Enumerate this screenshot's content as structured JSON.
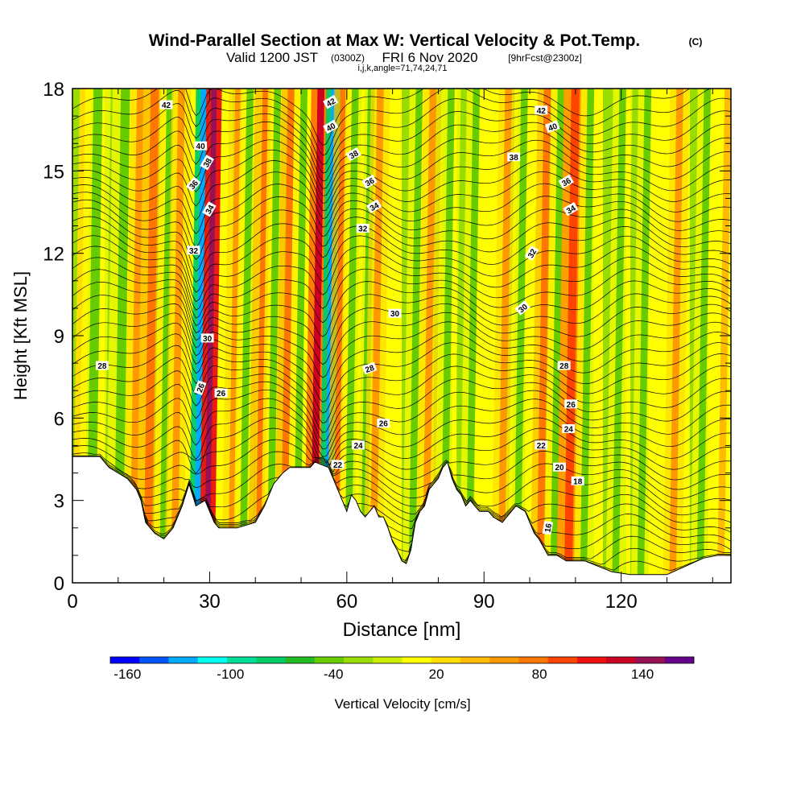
{
  "chart_data": {
    "type": "heatmap",
    "title": "Wind-Parallel Section at Max W: Vertical Velocity & Pot.Temp.",
    "title_mark": "(C)",
    "subtitle": {
      "valid": "Valid 1200 JST",
      "utc": "(0300Z)",
      "date": "FRI 6 Nov 2020",
      "forecast": "[9hrFcst@2300z]"
    },
    "indices": "i,j,k,angle=71,74,24,71",
    "xlabel": "Distance [nm]",
    "ylabel": "Height [Kft MSL]",
    "xlim": [
      0,
      144
    ],
    "ylim": [
      0,
      18
    ],
    "x_ticks": [
      "0",
      "30",
      "60",
      "90",
      "120"
    ],
    "y_ticks": [
      "0",
      "3",
      "6",
      "9",
      "12",
      "15",
      "18"
    ],
    "colorbar": {
      "label": "Vertical Velocity [cm/s]",
      "ticks": [
        "-160",
        "-100",
        "-40",
        "20",
        "80",
        "140"
      ],
      "colors": [
        "#0000ff",
        "#0055ff",
        "#00aaff",
        "#00ffee",
        "#00dd99",
        "#00cc66",
        "#22bb22",
        "#66cc00",
        "#99dd00",
        "#ccee00",
        "#ffff00",
        "#ffdd00",
        "#ffbb00",
        "#ff9900",
        "#ff7700",
        "#ff4400",
        "#ee1111",
        "#cc0022",
        "#991155",
        "#660088"
      ]
    },
    "velocity_bands": [
      {
        "x": 0,
        "w": 2.5,
        "v": 20
      },
      {
        "x": 3,
        "w": 2,
        "v": -40
      },
      {
        "x": 9,
        "w": 2,
        "v": -40
      },
      {
        "x": 12.5,
        "w": 1.5,
        "v": 60
      },
      {
        "x": 15.5,
        "w": 1.8,
        "v": 80
      },
      {
        "x": 19,
        "w": 1.5,
        "v": -40
      },
      {
        "x": 21.5,
        "w": 1.5,
        "v": 60
      },
      {
        "x": 26.5,
        "w": 1.2,
        "v": -120
      },
      {
        "x": 28.8,
        "w": 1.2,
        "v": 150
      },
      {
        "x": 34,
        "w": 1.5,
        "v": 60
      },
      {
        "x": 36.5,
        "w": 1.5,
        "v": -40
      },
      {
        "x": 40,
        "w": 1.8,
        "v": 80
      },
      {
        "x": 42.5,
        "w": 1.5,
        "v": -40
      },
      {
        "x": 45.5,
        "w": 1.5,
        "v": 80
      },
      {
        "x": 48.3,
        "w": 1.5,
        "v": -40
      },
      {
        "x": 52,
        "w": 1.5,
        "v": 120
      },
      {
        "x": 55,
        "w": 1.2,
        "v": -120
      },
      {
        "x": 57,
        "w": 1.5,
        "v": 80
      },
      {
        "x": 59.5,
        "w": 1.5,
        "v": -40
      },
      {
        "x": 63,
        "w": 1.5,
        "v": -40
      },
      {
        "x": 65,
        "w": 1.5,
        "v": 60
      },
      {
        "x": 73.5,
        "w": 1.5,
        "v": -40
      },
      {
        "x": 76.5,
        "w": 1.5,
        "v": 60
      },
      {
        "x": 80.5,
        "w": 1.5,
        "v": -40
      },
      {
        "x": 86,
        "w": 1.5,
        "v": -40
      },
      {
        "x": 93,
        "w": 1.5,
        "v": 60
      },
      {
        "x": 96.5,
        "w": 1.5,
        "v": -40
      },
      {
        "x": 101.5,
        "w": 1.5,
        "v": 80
      },
      {
        "x": 104.5,
        "w": 1.5,
        "v": -40
      },
      {
        "x": 107.5,
        "w": 1.8,
        "v": 100
      },
      {
        "x": 111,
        "w": 1.5,
        "v": -40
      },
      {
        "x": 118,
        "w": 1.5,
        "v": -40
      },
      {
        "x": 123.5,
        "w": 1.5,
        "v": -40
      },
      {
        "x": 130.5,
        "w": 1.5,
        "v": 60
      },
      {
        "x": 136.5,
        "w": 1.5,
        "v": -40
      },
      {
        "x": 141,
        "w": 1.5,
        "v": 40
      }
    ],
    "terrain": [
      [
        0,
        4.6
      ],
      [
        6,
        4.6
      ],
      [
        8,
        4.2
      ],
      [
        12,
        3.8
      ],
      [
        14,
        3.4
      ],
      [
        15,
        3.0
      ],
      [
        16,
        2.2
      ],
      [
        17,
        2.0
      ],
      [
        18,
        1.8
      ],
      [
        20,
        1.6
      ],
      [
        22,
        2.0
      ],
      [
        24,
        2.8
      ],
      [
        25.5,
        3.6
      ],
      [
        27,
        2.8
      ],
      [
        29,
        3.0
      ],
      [
        30,
        2.6
      ],
      [
        31,
        2.2
      ],
      [
        32,
        2.0
      ],
      [
        36,
        2.0
      ],
      [
        40,
        2.2
      ],
      [
        42,
        2.8
      ],
      [
        44,
        3.6
      ],
      [
        46,
        4.0
      ],
      [
        47.5,
        4.2
      ],
      [
        52,
        4.2
      ],
      [
        53,
        4.4
      ],
      [
        56,
        4.2
      ],
      [
        57,
        3.8
      ],
      [
        58,
        3.4
      ],
      [
        59,
        3.0
      ],
      [
        60,
        2.6
      ],
      [
        61,
        3.2
      ],
      [
        62,
        3.0
      ],
      [
        63,
        2.6
      ],
      [
        64,
        2.4
      ],
      [
        65,
        2.6
      ],
      [
        66,
        2.8
      ],
      [
        67,
        2.4
      ],
      [
        68,
        2.4
      ],
      [
        69,
        2.0
      ],
      [
        70,
        1.5
      ],
      [
        71,
        1.2
      ],
      [
        72,
        0.8
      ],
      [
        73,
        0.7
      ],
      [
        74,
        1.2
      ],
      [
        75,
        2.2
      ],
      [
        76,
        2.6
      ],
      [
        77,
        2.8
      ],
      [
        78,
        3.4
      ],
      [
        80,
        3.8
      ],
      [
        81,
        4.2
      ],
      [
        82,
        4.4
      ],
      [
        83,
        3.8
      ],
      [
        84,
        3.4
      ],
      [
        85,
        3.2
      ],
      [
        86,
        2.8
      ],
      [
        87,
        3.0
      ],
      [
        88,
        2.8
      ],
      [
        89,
        2.6
      ],
      [
        91,
        2.6
      ],
      [
        92,
        2.4
      ],
      [
        94,
        2.2
      ],
      [
        95,
        2.4
      ],
      [
        96,
        2.6
      ],
      [
        97,
        2.8
      ],
      [
        99,
        2.6
      ],
      [
        100,
        2.2
      ],
      [
        101,
        1.8
      ],
      [
        102,
        1.6
      ],
      [
        103,
        1.3
      ],
      [
        104,
        1.0
      ],
      [
        106,
        1.0
      ],
      [
        108,
        0.8
      ],
      [
        112,
        0.8
      ],
      [
        115,
        0.6
      ],
      [
        118,
        0.4
      ],
      [
        122,
        0.3
      ],
      [
        126,
        0.3
      ],
      [
        130,
        0.3
      ],
      [
        134,
        0.6
      ],
      [
        138,
        0.9
      ],
      [
        141,
        1.0
      ],
      [
        144,
        1.0
      ]
    ],
    "theta_labels": [
      {
        "text": "42",
        "x": 20.5,
        "y": 17.4,
        "rot": 0
      },
      {
        "text": "40",
        "x": 28,
        "y": 15.9,
        "rot": 0
      },
      {
        "text": "38",
        "x": 29.5,
        "y": 15.3,
        "rot": -60
      },
      {
        "text": "36",
        "x": 26.5,
        "y": 14.5,
        "rot": -50
      },
      {
        "text": "34",
        "x": 30,
        "y": 13.6,
        "rot": -60
      },
      {
        "text": "32",
        "x": 26.5,
        "y": 12.1,
        "rot": 0
      },
      {
        "text": "30",
        "x": 29.5,
        "y": 8.9,
        "rot": 0
      },
      {
        "text": "28",
        "x": 6.5,
        "y": 7.9,
        "rot": 0
      },
      {
        "text": "26",
        "x": 28,
        "y": 7.1,
        "rot": -70
      },
      {
        "text": "26",
        "x": 32.5,
        "y": 6.9,
        "rot": 0
      },
      {
        "text": "42",
        "x": 56.5,
        "y": 17.5,
        "rot": -30
      },
      {
        "text": "40",
        "x": 56.5,
        "y": 16.6,
        "rot": -30
      },
      {
        "text": "38",
        "x": 61.5,
        "y": 15.6,
        "rot": -30
      },
      {
        "text": "36",
        "x": 65,
        "y": 14.6,
        "rot": -30
      },
      {
        "text": "34",
        "x": 66,
        "y": 13.7,
        "rot": -30
      },
      {
        "text": "32",
        "x": 63.5,
        "y": 12.9,
        "rot": 0
      },
      {
        "text": "30",
        "x": 70.5,
        "y": 9.8,
        "rot": 0
      },
      {
        "text": "28",
        "x": 65,
        "y": 7.8,
        "rot": -20
      },
      {
        "text": "26",
        "x": 68,
        "y": 5.8,
        "rot": 0
      },
      {
        "text": "24",
        "x": 62.5,
        "y": 5.0,
        "rot": 0
      },
      {
        "text": "22",
        "x": 58,
        "y": 4.3,
        "rot": 0
      },
      {
        "text": "42",
        "x": 102.5,
        "y": 17.2,
        "rot": 0
      },
      {
        "text": "40",
        "x": 105,
        "y": 16.6,
        "rot": -20
      },
      {
        "text": "38",
        "x": 96.5,
        "y": 15.5,
        "rot": 0
      },
      {
        "text": "36",
        "x": 108,
        "y": 14.6,
        "rot": -30
      },
      {
        "text": "34",
        "x": 109,
        "y": 13.6,
        "rot": -30
      },
      {
        "text": "32",
        "x": 100.5,
        "y": 12.0,
        "rot": -60
      },
      {
        "text": "30",
        "x": 98.5,
        "y": 10.0,
        "rot": -40
      },
      {
        "text": "28",
        "x": 107.5,
        "y": 7.9,
        "rot": 0
      },
      {
        "text": "26",
        "x": 109,
        "y": 6.5,
        "rot": 0
      },
      {
        "text": "24",
        "x": 108.5,
        "y": 5.6,
        "rot": 0
      },
      {
        "text": "22",
        "x": 102.5,
        "y": 5.0,
        "rot": 0
      },
      {
        "text": "20",
        "x": 106.5,
        "y": 4.2,
        "rot": 0
      },
      {
        "text": "18",
        "x": 110.5,
        "y": 3.7,
        "rot": 0
      },
      {
        "text": "16",
        "x": 104,
        "y": 2.0,
        "rot": -80
      }
    ]
  }
}
